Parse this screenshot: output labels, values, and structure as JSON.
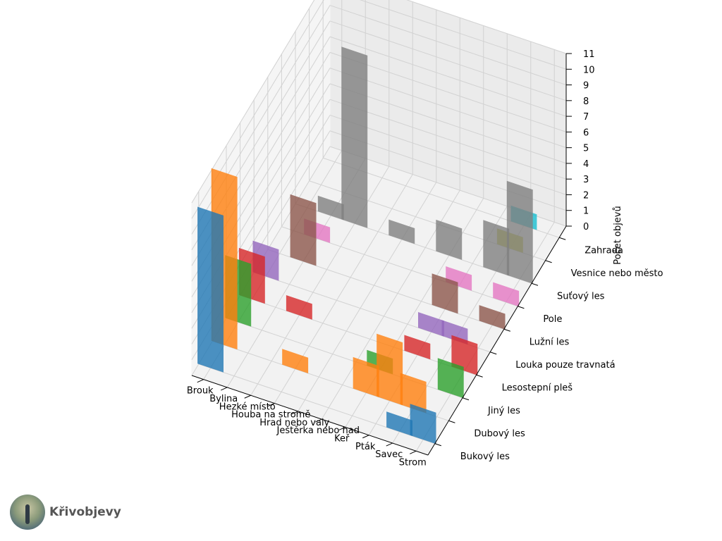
{
  "chart_data": {
    "type": "bar3d",
    "categories": [
      "Brouk",
      "Bylina",
      "Hezké místo",
      "Houba na stromě",
      "Hrad nebo valy",
      "Ještěrka nebo had",
      "Keř",
      "Pták",
      "Savec",
      "Strom"
    ],
    "series": [
      {
        "name": "Bukový les",
        "color": "#1f77b4",
        "values": [
          10,
          0,
          0,
          0,
          0,
          0,
          0,
          0,
          1,
          2
        ]
      },
      {
        "name": "Dubový les",
        "color": "#ff7f0e",
        "values": [
          11,
          0,
          0,
          1,
          0,
          0,
          2,
          4,
          2,
          0
        ]
      },
      {
        "name": "Jiný les",
        "color": "#2ca02c",
        "values": [
          4,
          0,
          0,
          0,
          0,
          0,
          1,
          0,
          0,
          2
        ]
      },
      {
        "name": "Lesostepní pleš",
        "color": "#d62728",
        "values": [
          3,
          0,
          1,
          0,
          0,
          0,
          0,
          1,
          0,
          2
        ]
      },
      {
        "name": "Louka pouze travnatá",
        "color": "#9467bd",
        "values": [
          2,
          0,
          0,
          0,
          0,
          0,
          0,
          1,
          1,
          0
        ]
      },
      {
        "name": "Lužní les",
        "color": "#8c564b",
        "values": [
          0,
          4,
          0,
          0,
          0,
          0,
          0,
          2,
          0,
          1
        ]
      },
      {
        "name": "Pole",
        "color": "#e377c2",
        "values": [
          0,
          1,
          0,
          0,
          0,
          0,
          0,
          1,
          0,
          1
        ]
      },
      {
        "name": "Suťový les",
        "color": "#7f7f7f",
        "values": [
          0,
          1,
          11,
          0,
          1,
          0,
          2,
          0,
          3,
          6
        ]
      },
      {
        "name": "Vesnice nebo město",
        "color": "#bcbd22",
        "values": [
          0,
          0,
          0,
          0,
          0,
          0,
          0,
          0,
          1,
          0
        ]
      },
      {
        "name": "Zahrada",
        "color": "#17becf",
        "values": [
          0,
          0,
          0,
          0,
          0,
          0,
          0,
          0,
          1,
          0
        ]
      }
    ],
    "zlabel": "Počet objevů",
    "zlim": [
      0,
      11
    ],
    "zticks": [
      0,
      1,
      2,
      3,
      4,
      5,
      6,
      7,
      8,
      9,
      10,
      11
    ],
    "grid": true
  },
  "branding": {
    "logo_icon": "tree-photo-logo",
    "name": "Křivobjevy"
  }
}
